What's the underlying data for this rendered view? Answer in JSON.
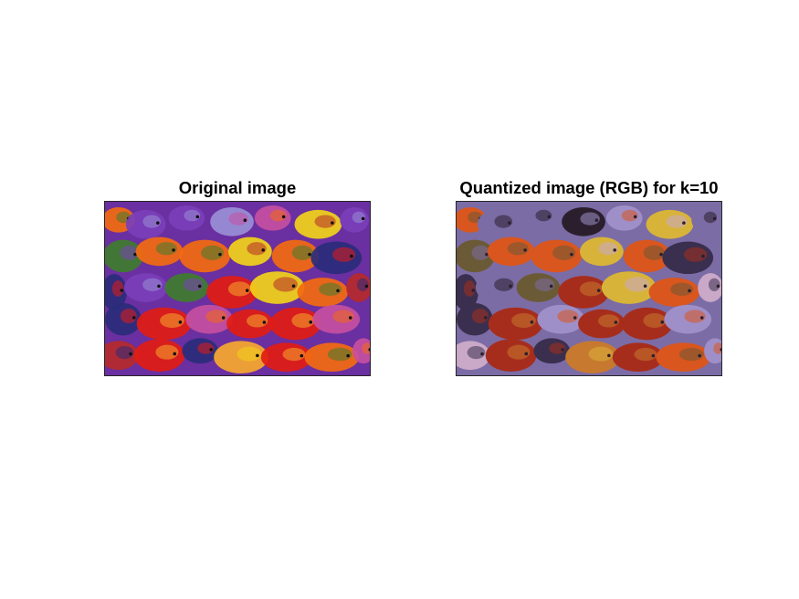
{
  "panels": [
    {
      "title": "Original image"
    },
    {
      "title": "Quantized image (RGB) for k=10"
    }
  ],
  "palette_original": [
    "#e21c12",
    "#f36a10",
    "#f2d219",
    "#7a3fb8",
    "#2a2c7a",
    "#c64fa0",
    "#f7a92c",
    "#3f7d2e",
    "#b52a2a",
    "#9a8fd6"
  ],
  "palette_quantized": [
    "#a62d1c",
    "#d9561e",
    "#d8b33a",
    "#7b6ca6",
    "#3a2f4e",
    "#9f8fc9",
    "#c7792f",
    "#6b5a36",
    "#c9a8c8",
    "#2b1f2e"
  ]
}
